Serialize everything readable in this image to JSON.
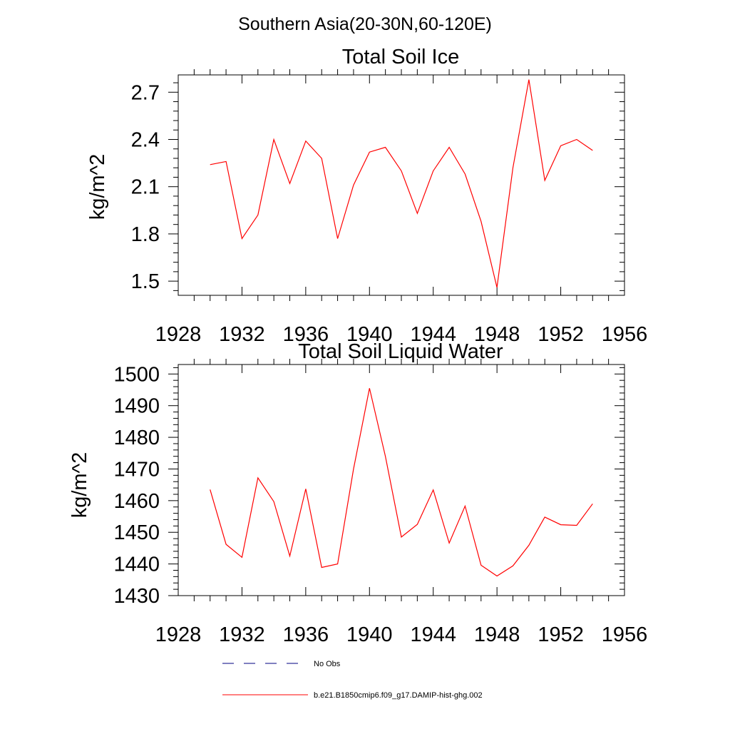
{
  "figure": {
    "suptitle": "Southern Asia(20-30N,60-120E)"
  },
  "colors": {
    "model_line": "#ff0000",
    "obs_line": "#000080",
    "axes": "#000000",
    "background": "#ffffff"
  },
  "legend": {
    "placement": "bottom",
    "items": [
      {
        "label": "No Obs",
        "style": "dashed",
        "color": "#000080"
      },
      {
        "label": "b.e21.B1850cmip6.f09_g17.DAMIP-hist-ghg.002",
        "style": "solid",
        "color": "#ff0000"
      }
    ]
  },
  "chart_data": [
    {
      "type": "line",
      "title": "Total Soil Ice",
      "xlabel": "",
      "ylabel": "kg/m^2",
      "xlim": [
        1928,
        1956
      ],
      "ylim": [
        1.41,
        2.81
      ],
      "xticks": [
        1928,
        1932,
        1936,
        1940,
        1944,
        1948,
        1952,
        1956
      ],
      "yticks": [
        1.5,
        1.8,
        2.1,
        2.4,
        2.7
      ],
      "ytick_labels": [
        "1.5",
        "1.8",
        "2.1",
        "2.4",
        "2.7"
      ],
      "grid": false,
      "x": [
        1930,
        1931,
        1932,
        1933,
        1934,
        1935,
        1936,
        1937,
        1938,
        1939,
        1940,
        1941,
        1942,
        1943,
        1944,
        1945,
        1946,
        1947,
        1948,
        1949,
        1950,
        1951,
        1952,
        1953,
        1954
      ],
      "series": [
        {
          "name": "b.e21.B1850cmip6.f09_g17.DAMIP-hist-ghg.002",
          "color": "#ff0000",
          "values": [
            2.24,
            2.26,
            1.77,
            1.92,
            2.4,
            2.12,
            2.39,
            2.28,
            1.77,
            2.11,
            2.32,
            2.35,
            2.2,
            1.93,
            2.2,
            2.35,
            2.18,
            1.88,
            1.46,
            2.22,
            2.78,
            2.14,
            2.36,
            2.4,
            2.33
          ]
        }
      ]
    },
    {
      "type": "line",
      "title": "Total Soil Liquid Water",
      "xlabel": "",
      "ylabel": "kg/m^2",
      "xlim": [
        1928,
        1956
      ],
      "ylim": [
        1430,
        1503
      ],
      "xticks": [
        1928,
        1932,
        1936,
        1940,
        1944,
        1948,
        1952,
        1956
      ],
      "yticks": [
        1430,
        1440,
        1450,
        1460,
        1470,
        1480,
        1490,
        1500
      ],
      "ytick_labels": [
        "1430",
        "1440",
        "1450",
        "1460",
        "1470",
        "1480",
        "1490",
        "1500"
      ],
      "grid": false,
      "x": [
        1930,
        1931,
        1932,
        1933,
        1934,
        1935,
        1936,
        1937,
        1938,
        1939,
        1940,
        1941,
        1942,
        1943,
        1944,
        1945,
        1946,
        1947,
        1948,
        1949,
        1950,
        1951,
        1952,
        1953,
        1954
      ],
      "series": [
        {
          "name": "b.e21.B1850cmip6.f09_g17.DAMIP-hist-ghg.002",
          "color": "#ff0000",
          "values": [
            1463.5,
            1446.2,
            1442.1,
            1467.2,
            1459.7,
            1442.5,
            1463.7,
            1438.9,
            1440.0,
            1470.0,
            1495.5,
            1474.0,
            1448.5,
            1452.5,
            1463.4,
            1446.6,
            1458.3,
            1439.6,
            1436.2,
            1439.4,
            1445.9,
            1454.8,
            1452.4,
            1452.2,
            1459.0
          ]
        }
      ]
    }
  ]
}
